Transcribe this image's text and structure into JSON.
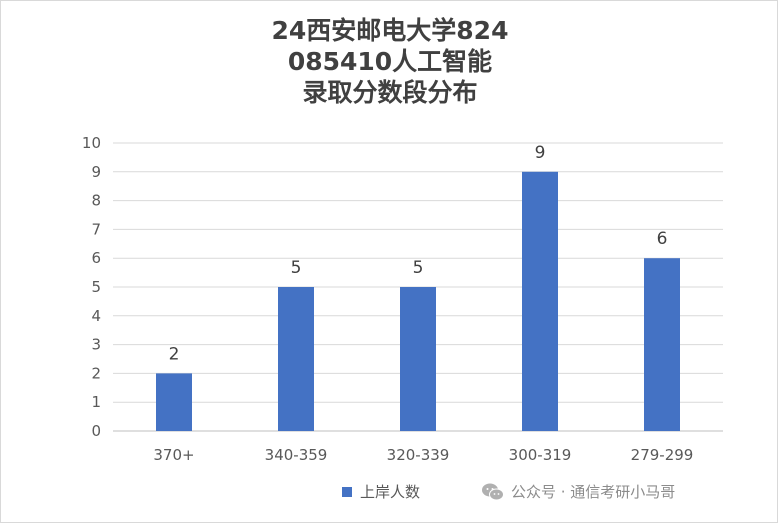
{
  "chart_data": {
    "type": "bar",
    "title_lines": [
      "24西安邮电大学824",
      "085410人工智能",
      "录取分数段分布"
    ],
    "categories": [
      "370+",
      "340-359",
      "320-339",
      "300-319",
      "279-299"
    ],
    "series": [
      {
        "name": "上岸人数",
        "values": [
          2,
          5,
          5,
          9,
          6
        ],
        "color": "#4472c4"
      }
    ],
    "ylim": [
      0,
      10
    ],
    "yticks": [
      0,
      1,
      2,
      3,
      4,
      5,
      6,
      7,
      8,
      9,
      10
    ],
    "grid": true,
    "legend_position": "bottom",
    "data_labels": true
  },
  "watermark": {
    "text": "公众号 · 通信考研小马哥",
    "icon": "wechat-icon"
  }
}
